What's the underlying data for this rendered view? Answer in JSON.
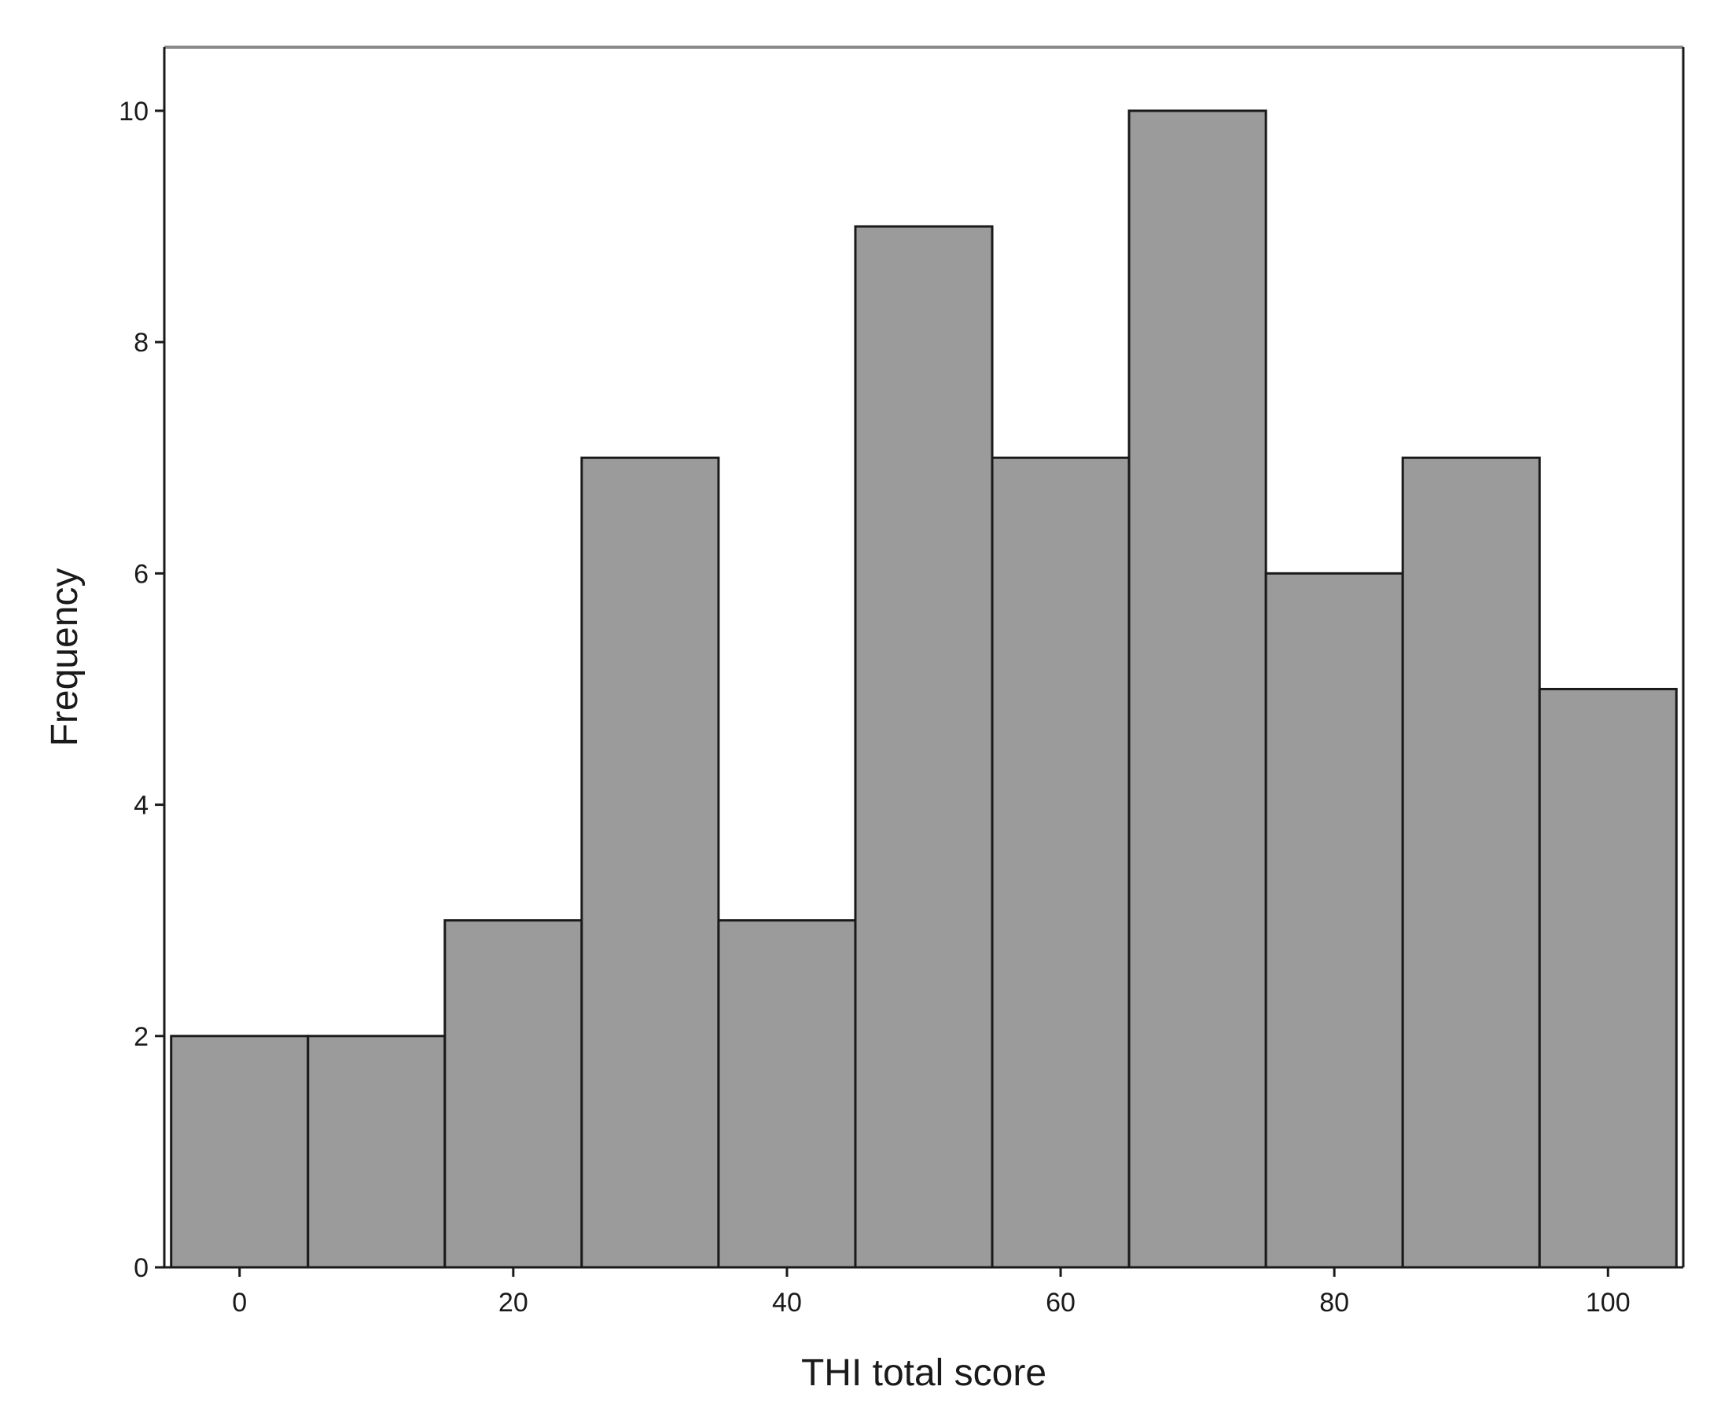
{
  "chart_data": {
    "type": "bar",
    "title": "",
    "xlabel": "THI total score",
    "ylabel": "Frequency",
    "bins": [
      {
        "x0": -5,
        "x1": 5,
        "value": 2
      },
      {
        "x0": 5,
        "x1": 15,
        "value": 2
      },
      {
        "x0": 15,
        "x1": 25,
        "value": 3
      },
      {
        "x0": 25,
        "x1": 35,
        "value": 7
      },
      {
        "x0": 35,
        "x1": 45,
        "value": 3
      },
      {
        "x0": 45,
        "x1": 55,
        "value": 9
      },
      {
        "x0": 55,
        "x1": 65,
        "value": 7
      },
      {
        "x0": 65,
        "x1": 75,
        "value": 10
      },
      {
        "x0": 75,
        "x1": 85,
        "value": 6
      },
      {
        "x0": 85,
        "x1": 95,
        "value": 7
      },
      {
        "x0": 95,
        "x1": 105,
        "value": 5
      }
    ],
    "xlim": [
      -5.5,
      105.5
    ],
    "ylim": [
      0,
      10.55
    ],
    "xticks": [
      0,
      20,
      40,
      60,
      80,
      100
    ],
    "yticks": [
      0,
      2,
      4,
      6,
      8,
      10
    ],
    "grid": false,
    "legend": "none",
    "colors": {
      "bar_fill": "#9b9b9b",
      "bar_edge": "#1a1a1a",
      "frame": "#1a1a1a",
      "top_border": "#8a8a8a"
    }
  }
}
